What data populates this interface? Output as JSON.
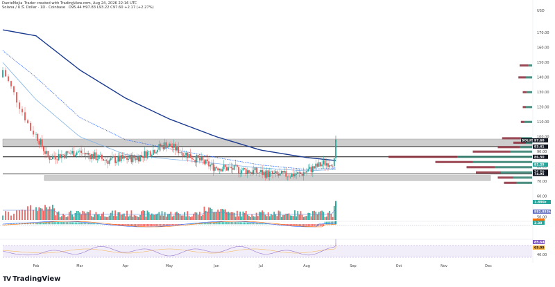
{
  "header": {
    "author_line": "DanteMejia_Trader created with TradingView.com, Aug 24, 2026 22:16 UTC",
    "instrument": "Solana / U.S. Dollar · 1D · Coinbase",
    "ohlc": "O95.44 H97.83 L93.22 C97.60 +2.17 (+2.27%)"
  },
  "brand": {
    "name": "TradingView",
    "logo_glyph": "TV"
  },
  "colors": {
    "up": "#26a69a",
    "down": "#ef5350",
    "ma_long": "#1a3a8f",
    "ma_dotted": "#2962ff",
    "ma_light": "#7fb3e6",
    "zone": "#b0b0b0",
    "vp_up": "#2e7d6b",
    "vp_down": "#8b2c3a",
    "rsi": "#9575cd"
  },
  "chart_data": {
    "type": "candlestick",
    "currency": "USD",
    "price_ticks": [
      "170.00",
      "160.00",
      "150.00",
      "140.00",
      "130.00",
      "120.00",
      "110.00",
      "100.00",
      "90.00",
      "80.00",
      "70.00",
      "60.00",
      "50.00"
    ],
    "ylim": [
      44,
      180
    ],
    "x_labels": [
      "Feb",
      "Mar",
      "Apr",
      "May",
      "Jun",
      "Jul",
      "Aug",
      "Sep",
      "Oct",
      "Nov",
      "Dec"
    ],
    "price_tags": [
      {
        "label": "SOLUSD",
        "value": "97.60",
        "style": "dark"
      },
      {
        "label": "",
        "value": "93.41",
        "style": "dark"
      },
      {
        "label": "",
        "value": "86.50",
        "style": "dark"
      },
      {
        "label": "",
        "value": "81.25",
        "style": "teal"
      },
      {
        "label": "",
        "value": "76.50",
        "style": "dark"
      },
      {
        "label": "",
        "value": "74.95",
        "style": "dark"
      }
    ],
    "volume_tags": [
      "1.886k",
      "882.853k"
    ],
    "macd_tags": [
      "2.38"
    ],
    "rsi_tags": [
      "85.64",
      "65.05"
    ],
    "rsi_ticks": [
      "40.00"
    ],
    "horizontal_levels": [
      93.41,
      86.5,
      74.95
    ],
    "zones": [
      {
        "from": 93.41,
        "to": 98.5
      },
      {
        "from": 70.5,
        "to": 74.0
      }
    ],
    "anchor_dates": [
      "Jan 20",
      "Feb 1",
      "Mar 1",
      "Apr 1",
      "May 1",
      "Jun 1",
      "Jul 1",
      "Aug 1",
      "Aug 20"
    ],
    "price_path": [
      145,
      105,
      86,
      90,
      84,
      86,
      95,
      80,
      77,
      74,
      75,
      82,
      84
    ],
    "ma_long": [
      172,
      168,
      145,
      126,
      112,
      100,
      91,
      86,
      84
    ],
    "ma_dotted": [
      158,
      140,
      113,
      98,
      92,
      86,
      81,
      78,
      79
    ],
    "ma_light": [
      150,
      125,
      100,
      88,
      85,
      82,
      79,
      77,
      78
    ],
    "volume_profile": [
      {
        "price": 99,
        "up": 18,
        "down": 30
      },
      {
        "price": 96,
        "up": 10,
        "down": 20
      },
      {
        "price": 93,
        "up": 20,
        "down": 35
      },
      {
        "price": 90,
        "up": 35,
        "down": 60
      },
      {
        "price": 86.5,
        "up": 120,
        "down": 110
      },
      {
        "price": 83,
        "up": 95,
        "down": 60
      },
      {
        "price": 79.5,
        "up": 60,
        "down": 45
      },
      {
        "price": 76,
        "up": 50,
        "down": 40
      },
      {
        "price": 72.5,
        "up": 30,
        "down": 25
      },
      {
        "price": 69,
        "up": 25,
        "down": 20
      },
      {
        "price": 110,
        "up": 12,
        "down": 6
      },
      {
        "price": 120,
        "up": 10,
        "down": 5
      },
      {
        "price": 130,
        "up": 9,
        "down": 6
      },
      {
        "price": 140,
        "up": 10,
        "down": 12
      },
      {
        "price": 148,
        "up": 6,
        "down": 14
      }
    ]
  }
}
